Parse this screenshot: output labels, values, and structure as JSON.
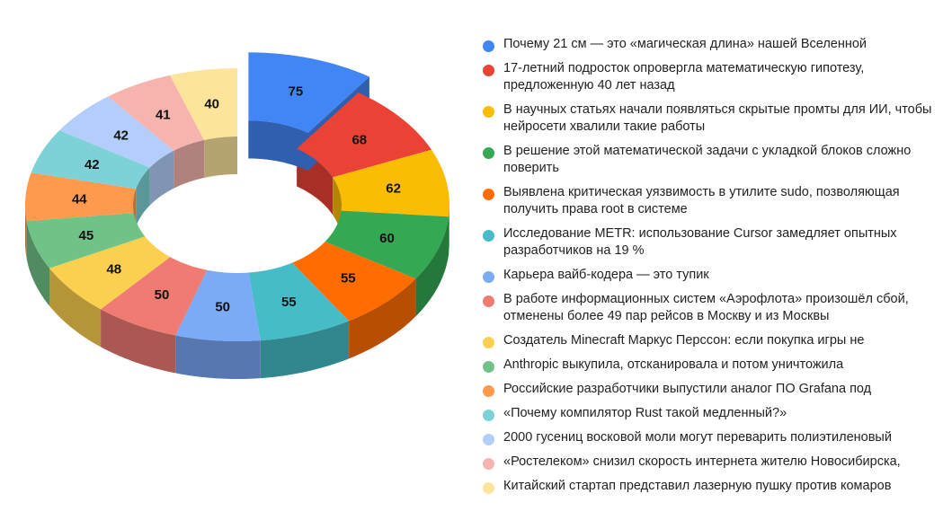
{
  "chart_data": {
    "type": "pie",
    "subtype": "3d-donut",
    "title": "",
    "legend_position": "right",
    "exploded_slice_index": 0,
    "categories": [
      "Почему 21 см — это «магическая длина» нашей Вселенной",
      "17-летний подросток опровергла математическую гипотезу, предложенную 40 лет назад",
      "В научных статьях начали появляться скрытые промты для ИИ, чтобы нейросети хвалили такие работы",
      "В решение этой математической задачи с укладкой блоков сложно поверить",
      "Выявлена критическая уязвимость в утилите sudo, позволяющая получить права root в системе",
      "Исследование METR: использование Cursor замедляет опытных разработчиков на 19 %",
      "Карьера вайб-кодера — это тупик",
      "В работе информационных систем «Аэрофлота» произошёл сбой, отменены более 49 пар рейсов в Москву и из Москвы",
      "Создатель Minecraft Маркус Перссон: если покупка игры не",
      "Anthropic выкупила, отсканировала и потом уничтожила",
      "Российские разработчики выпустили аналог ПО Grafana под",
      "«Почему компилятор Rust такой медленный?»",
      "2000 гусениц восковой моли могут переварить полиэтиленовый",
      "«Ростелеком» снизил скорость интернета жителю Новосибирска,",
      "Китайский стартап представил лазерную пушку против комаров"
    ],
    "values": [
      75,
      68,
      62,
      60,
      55,
      55,
      50,
      50,
      48,
      45,
      44,
      42,
      42,
      41,
      40
    ],
    "colors": [
      "#4285f4",
      "#ea4335",
      "#fbbc04",
      "#34a853",
      "#ff6d01",
      "#46bdc6",
      "#7baaf7",
      "#f07b72",
      "#fcd04f",
      "#71c287",
      "#ff994d",
      "#7ed1d7",
      "#b3cefb",
      "#f7b4ae",
      "#fde49b"
    ],
    "side_colors": [
      "#2f5fae",
      "#a72f26",
      "#b48703",
      "#25783b",
      "#b84e01",
      "#32878e",
      "#5876b0",
      "#ac5852",
      "#b59538",
      "#518b61",
      "#b76e37",
      "#5a969a",
      "#8094b3",
      "#b1817d",
      "#b5a46f"
    ]
  },
  "legend": {
    "items": [
      {
        "label": "Почему 21 см — это «магическая длина» нашей Вселенной",
        "color": "#4285f4"
      },
      {
        "label": "17-летний подросток опровергла математическую гипотезу, предложенную 40 лет назад",
        "color": "#ea4335"
      },
      {
        "label": "В научных статьях начали появляться скрытые промты для ИИ, чтобы нейросети хвалили такие работы",
        "color": "#fbbc04"
      },
      {
        "label": "В решение этой математической задачи с укладкой блоков сложно поверить",
        "color": "#34a853"
      },
      {
        "label": "Выявлена критическая уязвимость в утилите sudo, позволяющая получить права root в системе",
        "color": "#ff6d01"
      },
      {
        "label": "Исследование METR: использование Cursor замедляет опытных разработчиков на 19 %",
        "color": "#46bdc6"
      },
      {
        "label": "Карьера вайб-кодера — это тупик",
        "color": "#7baaf7"
      },
      {
        "label": "В работе информационных систем «Аэрофлота» произошёл сбой, отменены более 49 пар рейсов в Москву и из Москвы",
        "color": "#f07b72"
      },
      {
        "label": "Создатель Minecraft Маркус Перссон: если покупка игры не",
        "color": "#fcd04f"
      },
      {
        "label": "Anthropic выкупила, отсканировала и потом уничтожила",
        "color": "#71c287"
      },
      {
        "label": "Российские разработчики выпустили аналог ПО Grafana под",
        "color": "#ff994d"
      },
      {
        "label": "«Почему компилятор Rust такой медленный?»",
        "color": "#7ed1d7"
      },
      {
        "label": "2000 гусениц восковой моли могут переварить полиэтиленовый",
        "color": "#b3cefb"
      },
      {
        "label": "«Ростелеком» снизил скорость интернета жителю Новосибирска,",
        "color": "#f7b4ae"
      },
      {
        "label": "Китайский стартап представил лазерную пушку против комаров",
        "color": "#fde49b"
      }
    ]
  }
}
